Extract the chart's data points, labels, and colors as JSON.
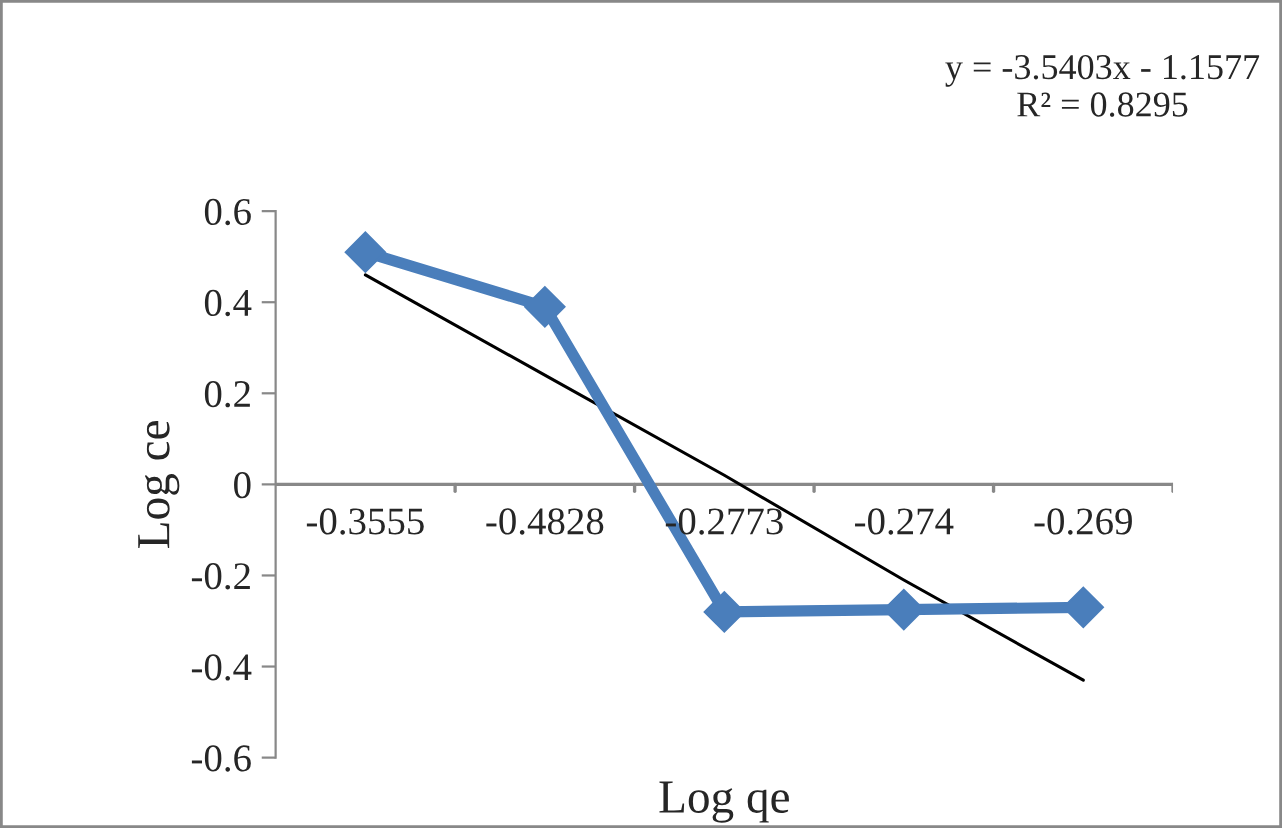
{
  "chart_data": {
    "type": "line",
    "xlabel": "Log qe",
    "ylabel": "Log ce",
    "categories": [
      "-0.3555",
      "-0.4828",
      "-0.2773",
      "-0.274",
      "-0.269"
    ],
    "series": [
      {
        "color": "#4a7ebb",
        "values": [
          0.51,
          0.39,
          -0.28,
          -0.275,
          -0.27
        ],
        "marker": "diamond",
        "line_style": "solid"
      },
      {
        "color": "#000000",
        "values": [
          0.46,
          0.24,
          0.02,
          -0.21,
          -0.43
        ],
        "marker": "none",
        "line_style": "solid"
      }
    ],
    "ylim": [
      -0.6,
      0.6
    ],
    "yticks": [
      -0.6,
      -0.4,
      -0.2,
      0,
      0.2,
      0.4,
      0.6
    ],
    "grid": false,
    "legend": false,
    "annotations": [
      "y = -3.5403x - 1.1577",
      "R² = 0.8295"
    ]
  }
}
